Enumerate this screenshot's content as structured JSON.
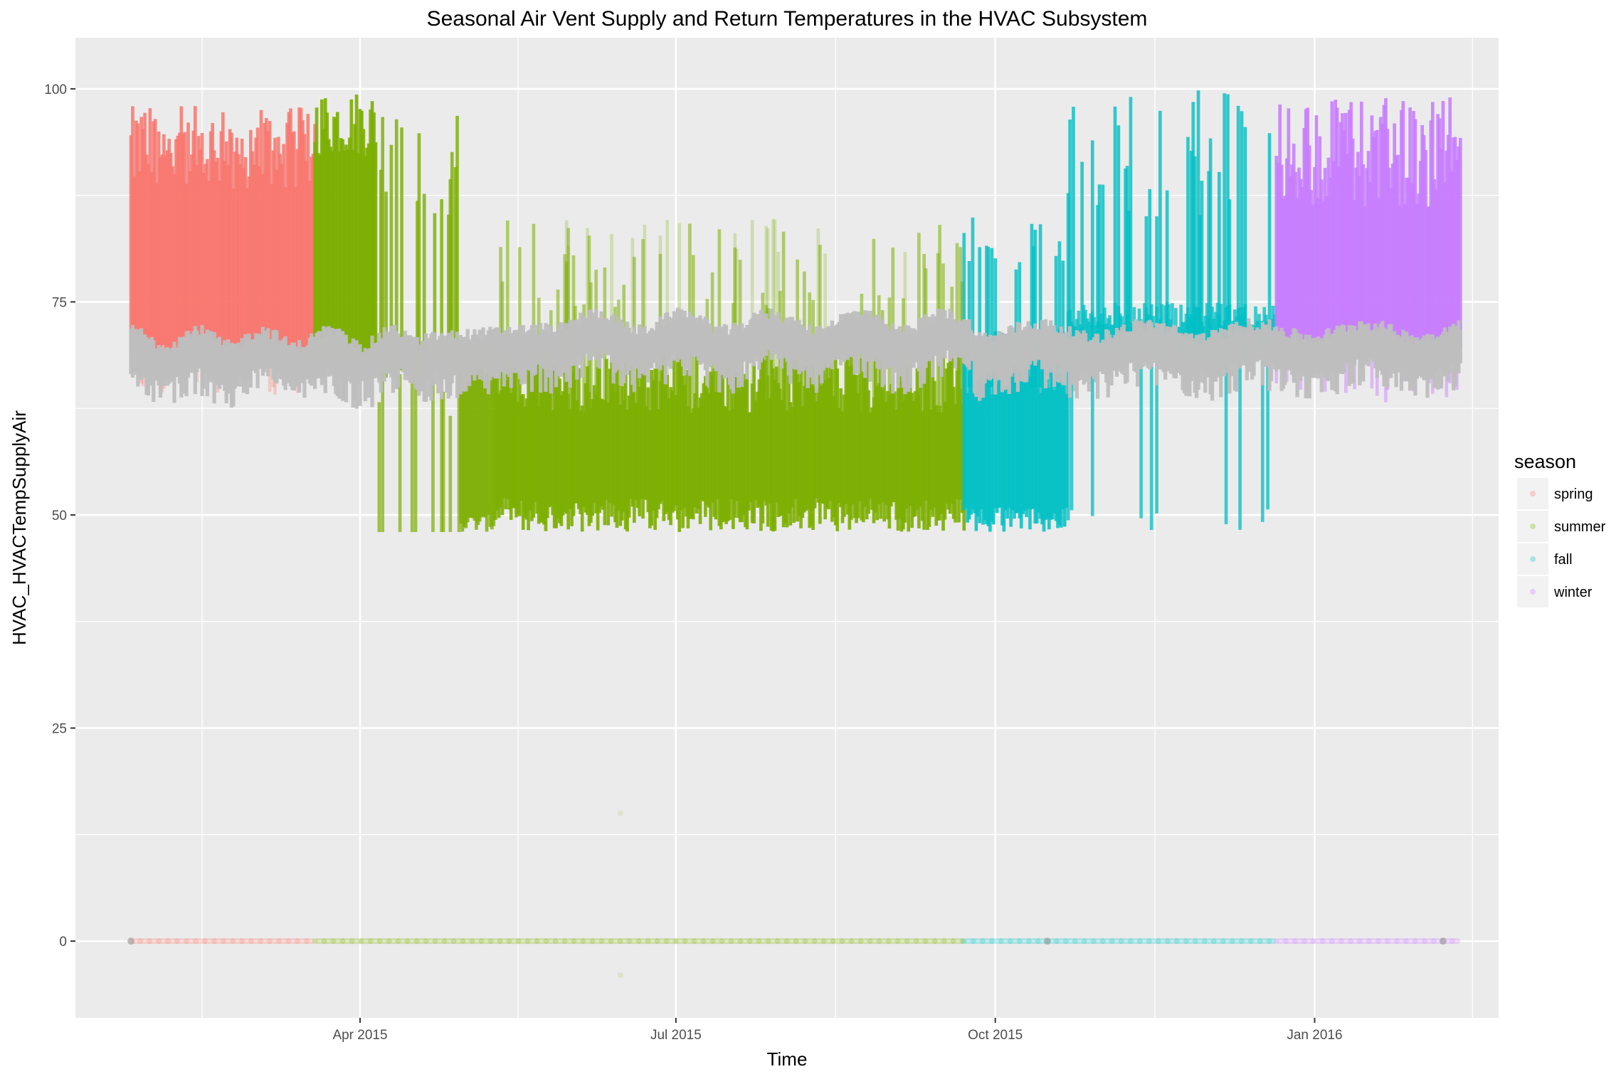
{
  "chart_data": {
    "type": "scatter",
    "title": "Seasonal Air Vent Supply and Return Temperatures in the HVAC Subsystem",
    "xlabel": "Time",
    "ylabel": "HVAC_HVACTempSupplyAir",
    "x_ticks": [
      "Apr 2015",
      "Jul 2015",
      "Oct 2015",
      "Jan 2016"
    ],
    "x_tick_dates": [
      "2015-04-01",
      "2015-07-01",
      "2015-10-01",
      "2016-01-01"
    ],
    "xlim": [
      "2015-01-09",
      "2016-02-23"
    ],
    "ylim": [
      -9,
      106
    ],
    "y_ticks": [
      0,
      25,
      50,
      75,
      100
    ],
    "grid": true,
    "background": "#ebebeb",
    "legend": {
      "title": "season",
      "position": "right",
      "entries": [
        "spring",
        "summer",
        "fall",
        "winter"
      ]
    },
    "series": [
      {
        "name": "spring",
        "color": "#f8766d",
        "date_range": [
          "2015-01-25",
          "2015-03-19"
        ],
        "supply_high_range": [
          66,
          98
        ],
        "zero_baseline": 0
      },
      {
        "name": "summer",
        "color": "#7cae00",
        "date_range": [
          "2015-03-19",
          "2015-09-22"
        ],
        "supply_high_range": [
          68,
          100
        ],
        "supply_low_range": [
          48,
          85
        ],
        "zero_baseline": 0
      },
      {
        "name": "fall",
        "color": "#00bfc4",
        "date_range": [
          "2015-09-22",
          "2015-12-21"
        ],
        "supply_low_range": [
          47,
          100
        ],
        "zero_baseline": 0
      },
      {
        "name": "winter",
        "color": "#c77cff",
        "date_range": [
          "2015-12-21",
          "2016-02-12"
        ],
        "supply_high_range": [
          62,
          100
        ],
        "zero_baseline": 0
      }
    ],
    "return_series": {
      "color": "#bebebe",
      "date_range": [
        "2015-01-25",
        "2016-02-12"
      ],
      "typical_range": [
        64,
        74
      ]
    }
  }
}
